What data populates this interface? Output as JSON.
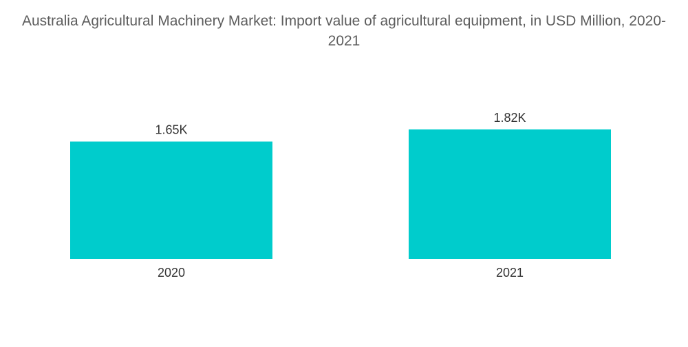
{
  "chart_data": {
    "type": "bar",
    "title": "Australia Agricultural Machinery Market: Import value of agricultural equipment, in USD Million, 2020-2021",
    "categories": [
      "2020",
      "2021"
    ],
    "values": [
      1650,
      1820
    ],
    "data_labels": [
      "1.65K",
      "1.82K"
    ],
    "xlabel": "",
    "ylabel": "",
    "ylim": [
      0,
      1820
    ],
    "grid": false,
    "legend": "none",
    "colors": [
      "#00cccc",
      "#00cccc"
    ]
  }
}
